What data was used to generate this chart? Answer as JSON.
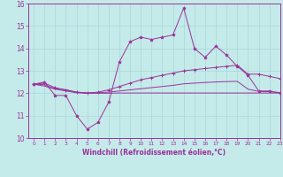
{
  "xlabel": "Windchill (Refroidissement éolien,°C)",
  "xlim": [
    -0.5,
    23
  ],
  "ylim": [
    10,
    16
  ],
  "yticks": [
    10,
    11,
    12,
    13,
    14,
    15,
    16
  ],
  "xticks": [
    0,
    1,
    2,
    3,
    4,
    5,
    6,
    7,
    8,
    9,
    10,
    11,
    12,
    13,
    14,
    15,
    16,
    17,
    18,
    19,
    20,
    21,
    22,
    23
  ],
  "background_color": "#c5eaea",
  "grid_color": "#a8d8d8",
  "line_color": "#993399",
  "line1": [
    12.4,
    12.5,
    11.9,
    11.9,
    11.0,
    10.4,
    10.7,
    11.6,
    13.4,
    14.3,
    14.5,
    14.4,
    14.5,
    14.6,
    15.8,
    14.0,
    13.6,
    14.1,
    13.7,
    13.2,
    12.8,
    12.1,
    12.1,
    12.0
  ],
  "line2": [
    12.4,
    12.45,
    12.25,
    12.15,
    12.05,
    12.0,
    12.05,
    12.15,
    12.3,
    12.45,
    12.6,
    12.7,
    12.8,
    12.9,
    13.0,
    13.05,
    13.1,
    13.15,
    13.2,
    13.25,
    12.85,
    12.85,
    12.75,
    12.65
  ],
  "line3": [
    12.4,
    12.38,
    12.2,
    12.15,
    12.05,
    12.02,
    12.02,
    12.05,
    12.1,
    12.15,
    12.2,
    12.25,
    12.3,
    12.35,
    12.42,
    12.45,
    12.48,
    12.5,
    12.52,
    12.53,
    12.18,
    12.08,
    12.07,
    12.03
  ],
  "line4": [
    12.4,
    12.32,
    12.18,
    12.1,
    12.02,
    12.0,
    12.0,
    12.0,
    12.01,
    12.01,
    12.01,
    12.01,
    12.01,
    12.01,
    12.01,
    12.01,
    12.01,
    12.01,
    12.01,
    12.01,
    12.01,
    12.01,
    12.01,
    12.01
  ]
}
